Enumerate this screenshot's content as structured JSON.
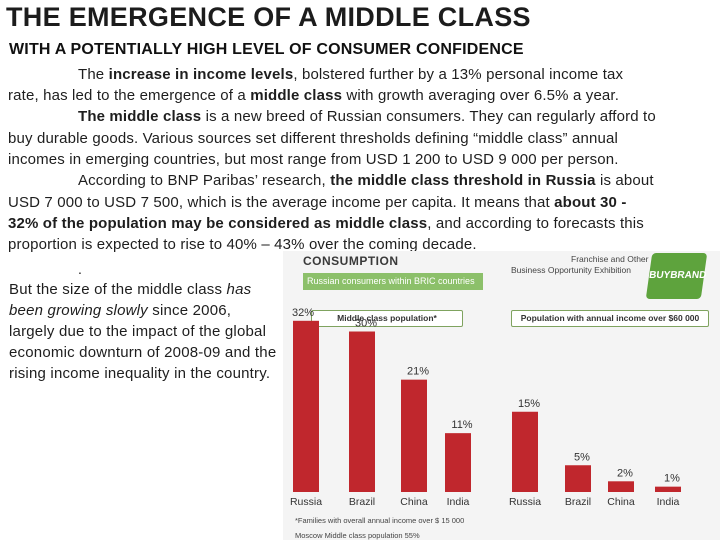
{
  "heading": {
    "title": "THE EMERGENCE OF A MIDDLE CLASS",
    "subtitle": "WITH A POTENTIALLY HIGH LEVEL OF CONSUMER CONFIDENCE"
  },
  "paragraph": {
    "l1_a": "The ",
    "l1_b": "increase in income levels",
    "l1_c": ", bolstered further by a 13% personal income tax",
    "l2_a": "rate, has led to the emergence of a ",
    "l2_b": "middle class",
    "l2_c": " with growth averaging over 6.5% a year.",
    "l3_a": "The middle class",
    "l3_b": " is a new breed of Russian consumers. They can regularly afford to",
    "l4": "buy durable goods. Various sources set different thresholds defining “middle class” annual",
    "l5": "incomes in emerging countries, but most range from USD 1 200 to USD 9 000 per person.",
    "l6_a": "According to BNP Paribas’ research, ",
    "l6_b": "the middle class threshold in Russia",
    "l6_c": " is about",
    "l7_a": "USD 7 000 to USD 7 500, which is the average income per capita. It means that ",
    "l7_b": "about 30 -",
    "l8_a": "32% of the population may  be considered  as middle class",
    "l8_b": ", and according to forecasts this",
    "l9": "proportion is expected to rise to 40% – 43% over the coming decade."
  },
  "dot": ".",
  "side": {
    "t1": "But the size of the middle class ",
    "t2": "has been growing slowly",
    "t3": " since 2006, largely due to the impact of the global economic downturn of 2008-09 and the rising income inequality in the country."
  },
  "figure": {
    "header": "CONSUMPTION",
    "banner": "Russian consumers within BRIC countries",
    "expo_line1": "Franchise and Other",
    "expo_line2": "Business Opportunity Exhibition",
    "logo_text": "BUYBRAND",
    "footnote1": "*Families with overall annual income over $ 15 000",
    "footnote2": "Moscow Middle class population     55%"
  },
  "colors": {
    "bar": "#c0272d",
    "banner": "#8cc06a"
  },
  "chart_data": [
    {
      "type": "bar",
      "title": "Middle class population*",
      "categories": [
        "Russia",
        "Brazil",
        "China",
        "India"
      ],
      "values": [
        32,
        30,
        21,
        11
      ],
      "labels": [
        "32%",
        "30%",
        "21%",
        "11%"
      ]
    },
    {
      "type": "bar",
      "title": "Population with annual income over $60 000",
      "categories": [
        "Russia",
        "Brazil",
        "China",
        "India"
      ],
      "values": [
        15,
        5,
        2,
        1
      ],
      "labels": [
        "15%",
        "5%",
        "2%",
        "1%"
      ]
    }
  ]
}
